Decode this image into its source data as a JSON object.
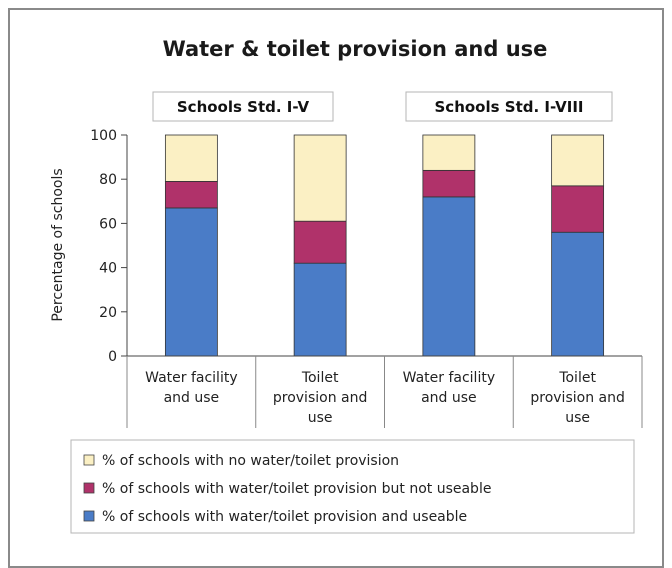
{
  "chart_data": {
    "type": "bar",
    "stacked": true,
    "title": "Water & toilet provision and use",
    "ylabel": "Percentage of schools",
    "xlabel": "",
    "ylim": [
      0,
      100
    ],
    "yticks": [
      0,
      20,
      40,
      60,
      80,
      100
    ],
    "grid": false,
    "legend_position": "bottom",
    "group_labels": [
      "Schools Std. I-V",
      "Schools Std. I-VIII"
    ],
    "categories": [
      [
        "Water facility",
        "and use"
      ],
      [
        "Toilet",
        "provision and",
        "use"
      ],
      [
        "Water facility",
        "and use"
      ],
      [
        "Toilet",
        "provision and",
        "use"
      ]
    ],
    "series": [
      {
        "name": "% of schools with water/toilet provision and useable",
        "color": "#4a7cc7",
        "values": [
          67,
          42,
          72,
          56
        ]
      },
      {
        "name": "% of schools with water/toilet provision but not useable",
        "color": "#b0326a",
        "values": [
          12,
          19,
          12,
          21
        ]
      },
      {
        "name": "% of schools with no water/toilet provision",
        "color": "#fbf0c4",
        "values": [
          21,
          39,
          16,
          23
        ]
      }
    ],
    "legend_order": [
      2,
      1,
      0
    ]
  }
}
